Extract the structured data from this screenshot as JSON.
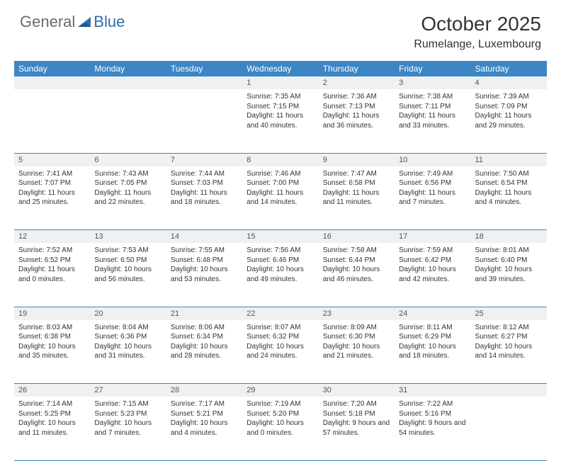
{
  "logo": {
    "general": "General",
    "blue": "Blue"
  },
  "title": "October 2025",
  "location": "Rumelange, Luxembourg",
  "colors": {
    "header_bg": "#3d86c6",
    "header_text": "#ffffff",
    "daynum_bg": "#eef0f2",
    "border": "#3d86c6",
    "logo_gray": "#6a6a6a",
    "logo_blue": "#2f6fa8"
  },
  "dayNames": [
    "Sunday",
    "Monday",
    "Tuesday",
    "Wednesday",
    "Thursday",
    "Friday",
    "Saturday"
  ],
  "weeks": [
    {
      "nums": [
        "",
        "",
        "",
        "1",
        "2",
        "3",
        "4"
      ],
      "cells": [
        null,
        null,
        null,
        {
          "sr": "Sunrise: 7:35 AM",
          "ss": "Sunset: 7:15 PM",
          "dl": "Daylight: 11 hours and 40 minutes."
        },
        {
          "sr": "Sunrise: 7:36 AM",
          "ss": "Sunset: 7:13 PM",
          "dl": "Daylight: 11 hours and 36 minutes."
        },
        {
          "sr": "Sunrise: 7:38 AM",
          "ss": "Sunset: 7:11 PM",
          "dl": "Daylight: 11 hours and 33 minutes."
        },
        {
          "sr": "Sunrise: 7:39 AM",
          "ss": "Sunset: 7:09 PM",
          "dl": "Daylight: 11 hours and 29 minutes."
        }
      ]
    },
    {
      "nums": [
        "5",
        "6",
        "7",
        "8",
        "9",
        "10",
        "11"
      ],
      "cells": [
        {
          "sr": "Sunrise: 7:41 AM",
          "ss": "Sunset: 7:07 PM",
          "dl": "Daylight: 11 hours and 25 minutes."
        },
        {
          "sr": "Sunrise: 7:43 AM",
          "ss": "Sunset: 7:05 PM",
          "dl": "Daylight: 11 hours and 22 minutes."
        },
        {
          "sr": "Sunrise: 7:44 AM",
          "ss": "Sunset: 7:03 PM",
          "dl": "Daylight: 11 hours and 18 minutes."
        },
        {
          "sr": "Sunrise: 7:46 AM",
          "ss": "Sunset: 7:00 PM",
          "dl": "Daylight: 11 hours and 14 minutes."
        },
        {
          "sr": "Sunrise: 7:47 AM",
          "ss": "Sunset: 6:58 PM",
          "dl": "Daylight: 11 hours and 11 minutes."
        },
        {
          "sr": "Sunrise: 7:49 AM",
          "ss": "Sunset: 6:56 PM",
          "dl": "Daylight: 11 hours and 7 minutes."
        },
        {
          "sr": "Sunrise: 7:50 AM",
          "ss": "Sunset: 6:54 PM",
          "dl": "Daylight: 11 hours and 4 minutes."
        }
      ]
    },
    {
      "nums": [
        "12",
        "13",
        "14",
        "15",
        "16",
        "17",
        "18"
      ],
      "cells": [
        {
          "sr": "Sunrise: 7:52 AM",
          "ss": "Sunset: 6:52 PM",
          "dl": "Daylight: 11 hours and 0 minutes."
        },
        {
          "sr": "Sunrise: 7:53 AM",
          "ss": "Sunset: 6:50 PM",
          "dl": "Daylight: 10 hours and 56 minutes."
        },
        {
          "sr": "Sunrise: 7:55 AM",
          "ss": "Sunset: 6:48 PM",
          "dl": "Daylight: 10 hours and 53 minutes."
        },
        {
          "sr": "Sunrise: 7:56 AM",
          "ss": "Sunset: 6:46 PM",
          "dl": "Daylight: 10 hours and 49 minutes."
        },
        {
          "sr": "Sunrise: 7:58 AM",
          "ss": "Sunset: 6:44 PM",
          "dl": "Daylight: 10 hours and 46 minutes."
        },
        {
          "sr": "Sunrise: 7:59 AM",
          "ss": "Sunset: 6:42 PM",
          "dl": "Daylight: 10 hours and 42 minutes."
        },
        {
          "sr": "Sunrise: 8:01 AM",
          "ss": "Sunset: 6:40 PM",
          "dl": "Daylight: 10 hours and 39 minutes."
        }
      ]
    },
    {
      "nums": [
        "19",
        "20",
        "21",
        "22",
        "23",
        "24",
        "25"
      ],
      "cells": [
        {
          "sr": "Sunrise: 8:03 AM",
          "ss": "Sunset: 6:38 PM",
          "dl": "Daylight: 10 hours and 35 minutes."
        },
        {
          "sr": "Sunrise: 8:04 AM",
          "ss": "Sunset: 6:36 PM",
          "dl": "Daylight: 10 hours and 31 minutes."
        },
        {
          "sr": "Sunrise: 8:06 AM",
          "ss": "Sunset: 6:34 PM",
          "dl": "Daylight: 10 hours and 28 minutes."
        },
        {
          "sr": "Sunrise: 8:07 AM",
          "ss": "Sunset: 6:32 PM",
          "dl": "Daylight: 10 hours and 24 minutes."
        },
        {
          "sr": "Sunrise: 8:09 AM",
          "ss": "Sunset: 6:30 PM",
          "dl": "Daylight: 10 hours and 21 minutes."
        },
        {
          "sr": "Sunrise: 8:11 AM",
          "ss": "Sunset: 6:29 PM",
          "dl": "Daylight: 10 hours and 18 minutes."
        },
        {
          "sr": "Sunrise: 8:12 AM",
          "ss": "Sunset: 6:27 PM",
          "dl": "Daylight: 10 hours and 14 minutes."
        }
      ]
    },
    {
      "nums": [
        "26",
        "27",
        "28",
        "29",
        "30",
        "31",
        ""
      ],
      "cells": [
        {
          "sr": "Sunrise: 7:14 AM",
          "ss": "Sunset: 5:25 PM",
          "dl": "Daylight: 10 hours and 11 minutes."
        },
        {
          "sr": "Sunrise: 7:15 AM",
          "ss": "Sunset: 5:23 PM",
          "dl": "Daylight: 10 hours and 7 minutes."
        },
        {
          "sr": "Sunrise: 7:17 AM",
          "ss": "Sunset: 5:21 PM",
          "dl": "Daylight: 10 hours and 4 minutes."
        },
        {
          "sr": "Sunrise: 7:19 AM",
          "ss": "Sunset: 5:20 PM",
          "dl": "Daylight: 10 hours and 0 minutes."
        },
        {
          "sr": "Sunrise: 7:20 AM",
          "ss": "Sunset: 5:18 PM",
          "dl": "Daylight: 9 hours and 57 minutes."
        },
        {
          "sr": "Sunrise: 7:22 AM",
          "ss": "Sunset: 5:16 PM",
          "dl": "Daylight: 9 hours and 54 minutes."
        },
        null
      ]
    }
  ]
}
